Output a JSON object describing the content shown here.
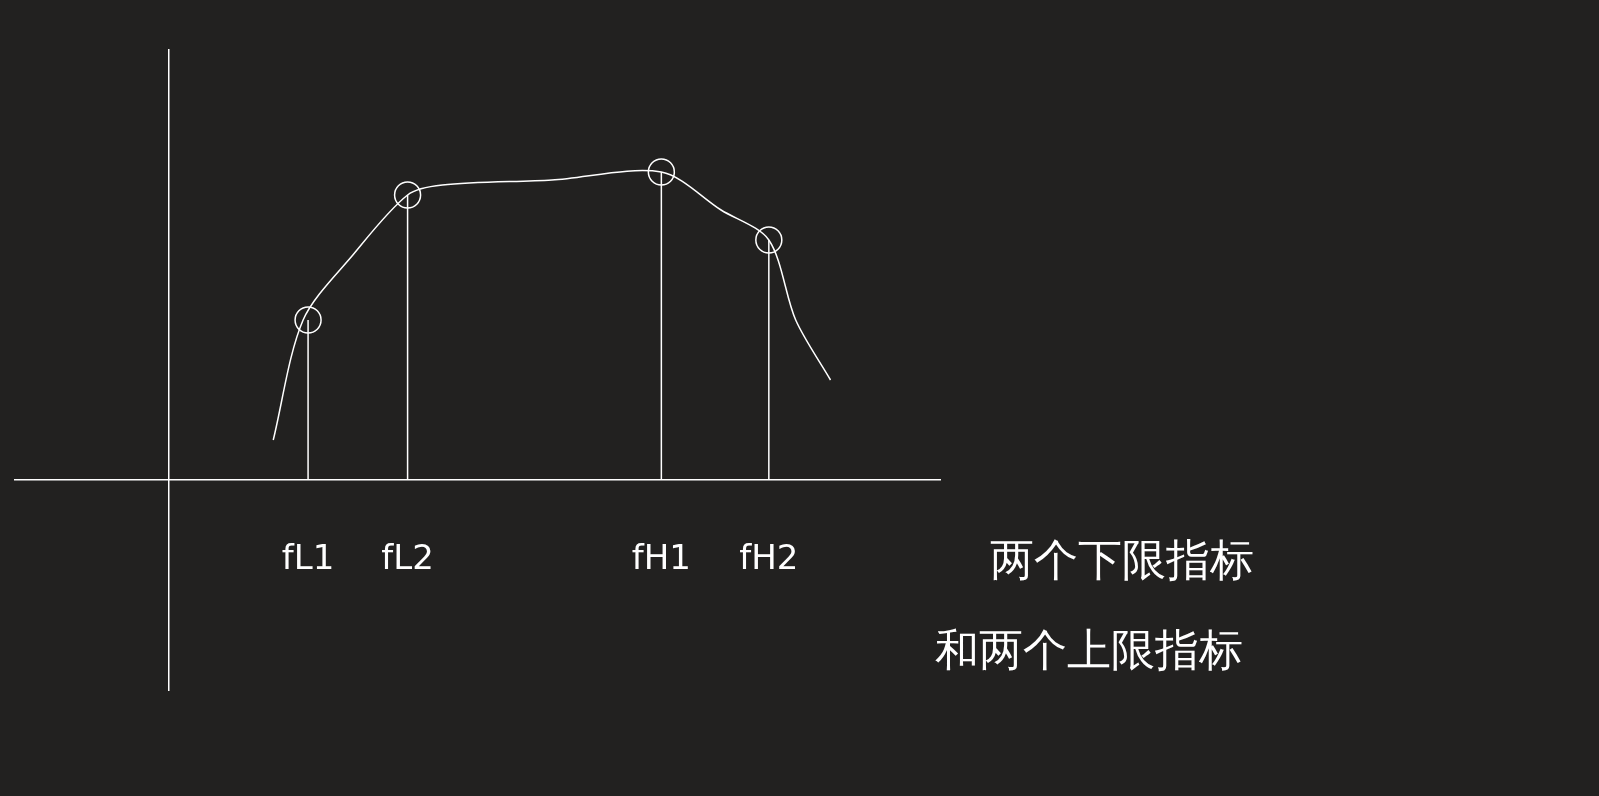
{
  "chart_data": {
    "type": "line",
    "series": [
      {
        "x": [
          1.05,
          1.35,
          1.85,
          2.4,
          2.75,
          3.85,
          4.95,
          5.55,
          6.03,
          6.3,
          6.65
        ],
        "values": [
          0.4,
          1.6,
          2.25,
          2.85,
          2.95,
          3.0,
          3.08,
          2.7,
          2.4,
          1.6,
          1.0
        ],
        "color": "#ffffff"
      },
      {
        "type": "scatter",
        "marker": "circle",
        "color": "#ffffff",
        "x": [
          1.4,
          2.4,
          4.95,
          6.03
        ],
        "values": [
          1.6,
          2.85,
          3.08,
          2.4
        ]
      }
    ],
    "xlim": [
      -1.55,
      7.75
    ],
    "ylim": [
      -2.1,
      4.3
    ],
    "xticks": [
      {
        "value": 1.4,
        "label": "fL1"
      },
      {
        "value": 2.4,
        "label": "fL2"
      },
      {
        "value": 4.95,
        "label": "fH1"
      },
      {
        "value": 6.03,
        "label": "fH2"
      }
    ],
    "yticks": [],
    "tick_labels": "x",
    "grid": false,
    "annotations": [
      "两个下限指标",
      "和两个上限指标"
    ]
  }
}
